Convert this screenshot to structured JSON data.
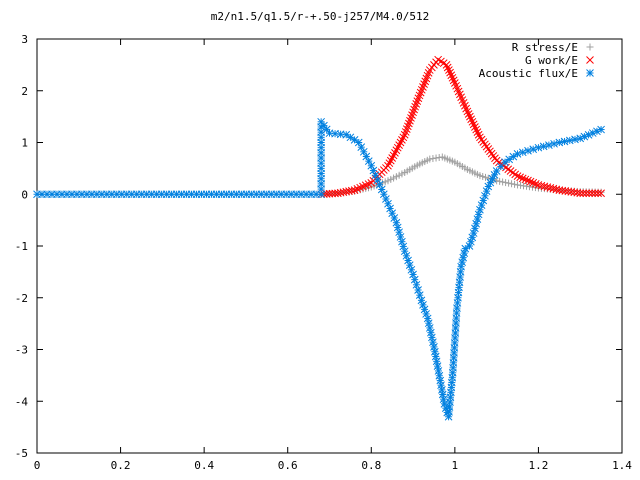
{
  "chart_data": {
    "type": "scatter",
    "title": "m2/n1.5/q1.5/r-+.50-j257/M4.0/512",
    "xlabel": "",
    "ylabel": "",
    "xlim": [
      0,
      1.4
    ],
    "ylim": [
      -5,
      3
    ],
    "x_ticks": [
      "0",
      "0.2",
      "0.4",
      "0.6",
      "0.8",
      "1",
      "1.2",
      "1.4"
    ],
    "y_ticks": [
      "3",
      "2",
      "1",
      "0",
      "-1",
      "-2",
      "-3",
      "-4",
      "-5"
    ],
    "grid": false,
    "legend_position": "top-right",
    "series": [
      {
        "name": "R stress/E",
        "marker": "+",
        "color": "#a0a0a0",
        "x": [
          0.68,
          0.72,
          0.76,
          0.8,
          0.84,
          0.88,
          0.91,
          0.94,
          0.97,
          1.0,
          1.03,
          1.06,
          1.1,
          1.15,
          1.2,
          1.25,
          1.3,
          1.35
        ],
        "y": [
          0.0,
          0.02,
          0.06,
          0.14,
          0.26,
          0.42,
          0.56,
          0.68,
          0.72,
          0.62,
          0.48,
          0.36,
          0.26,
          0.18,
          0.12,
          0.08,
          0.05,
          0.04
        ]
      },
      {
        "name": "G work/E",
        "marker": "x",
        "color": "#ff0000",
        "x": [
          0.68,
          0.72,
          0.76,
          0.8,
          0.84,
          0.88,
          0.91,
          0.94,
          0.96,
          0.98,
          1.0,
          1.03,
          1.06,
          1.1,
          1.15,
          1.2,
          1.25,
          1.3,
          1.35
        ],
        "y": [
          0.0,
          0.02,
          0.08,
          0.22,
          0.55,
          1.15,
          1.8,
          2.4,
          2.6,
          2.5,
          2.15,
          1.6,
          1.1,
          0.65,
          0.35,
          0.18,
          0.08,
          0.02,
          0.02
        ]
      },
      {
        "name": "Acoustic flux/E",
        "marker": "*",
        "color": "#0080e0",
        "x": [
          0.0,
          0.68,
          0.68,
          0.7,
          0.74,
          0.77,
          0.8,
          0.83,
          0.86,
          0.88,
          0.9,
          0.92,
          0.935,
          0.95,
          0.965,
          0.975,
          0.985,
          0.995,
          1.005,
          1.015,
          1.025,
          1.035,
          1.045,
          1.06,
          1.08,
          1.1,
          1.12,
          1.15,
          1.2,
          1.25,
          1.3,
          1.35
        ],
        "y": [
          0.0,
          0.0,
          1.4,
          1.18,
          1.15,
          1.0,
          0.55,
          0.0,
          -0.55,
          -1.1,
          -1.55,
          -2.05,
          -2.4,
          -2.95,
          -3.6,
          -4.05,
          -4.3,
          -3.45,
          -2.2,
          -1.4,
          -1.05,
          -1.0,
          -0.75,
          -0.3,
          0.15,
          0.45,
          0.62,
          0.78,
          0.9,
          1.0,
          1.08,
          1.25
        ]
      }
    ]
  }
}
